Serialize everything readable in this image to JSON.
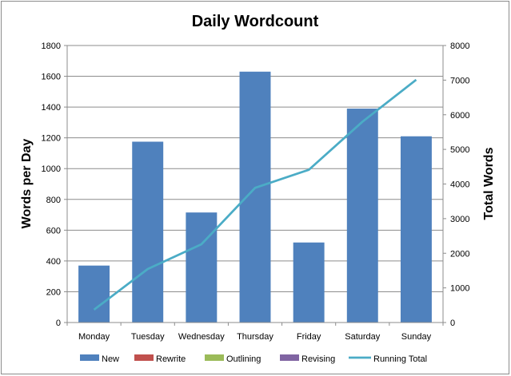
{
  "chart_data": {
    "type": "bar",
    "title": "Daily Wordcount",
    "ylabel": "Words per Day",
    "y2label": "Total Words",
    "xlabel": "",
    "categories": [
      "Monday",
      "Tuesday",
      "Wednesday",
      "Thursday",
      "Friday",
      "Saturday",
      "Sunday"
    ],
    "ylim": [
      0,
      1800
    ],
    "y2lim": [
      0,
      8000
    ],
    "yticks": [
      "0",
      "200",
      "400",
      "600",
      "800",
      "1000",
      "1200",
      "1400",
      "1600",
      "1800"
    ],
    "y2ticks": [
      "0",
      "1000",
      "2000",
      "3000",
      "4000",
      "5000",
      "6000",
      "7000",
      "8000"
    ],
    "grid": true,
    "legend_position": "bottom",
    "series": [
      {
        "name": "New",
        "kind": "bar",
        "axis": "left",
        "color": "#4f81bd",
        "values": [
          370,
          1175,
          715,
          1630,
          520,
          1390,
          1210
        ]
      },
      {
        "name": "Rewrite",
        "kind": "bar",
        "axis": "left",
        "color": "#c0504d",
        "values": [
          0,
          0,
          0,
          0,
          0,
          0,
          0
        ]
      },
      {
        "name": "Outlining",
        "kind": "bar",
        "axis": "left",
        "color": "#9bbb59",
        "values": [
          0,
          0,
          0,
          0,
          0,
          0,
          0
        ]
      },
      {
        "name": "Revising",
        "kind": "bar",
        "axis": "left",
        "color": "#8064a2",
        "values": [
          0,
          0,
          0,
          0,
          0,
          0,
          0
        ]
      },
      {
        "name": "Running Total",
        "kind": "line",
        "axis": "right",
        "color": "#4bacc6",
        "values": [
          370,
          1545,
          2260,
          3890,
          4410,
          5800,
          7010
        ]
      }
    ]
  }
}
